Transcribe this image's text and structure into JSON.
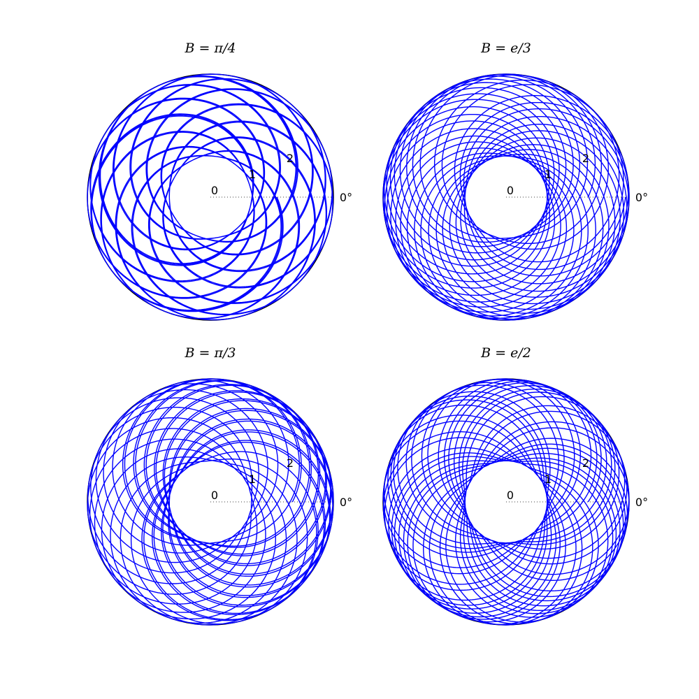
{
  "figure": {
    "background": "#ffffff"
  },
  "chart_data": [
    {
      "type": "line",
      "subtype": "polar",
      "title": "B = π/4",
      "B": 0.7853981634,
      "equation_hint": "r = 2 + sin(B * theta) with many windings (rose-like curve)",
      "r_range": [
        0,
        3.0
      ],
      "r_ticks": [
        "0",
        "1",
        "2"
      ],
      "angle_label": "0°",
      "line_color": "#0000ff",
      "r_min": 1.0,
      "r_max": 3.0,
      "theta_turns": 30
    },
    {
      "type": "line",
      "subtype": "polar",
      "title": "B = e/3",
      "B": 0.9060939428,
      "r_range": [
        0,
        3.0
      ],
      "r_ticks": [
        "0",
        "1",
        "2"
      ],
      "angle_label": "0°",
      "line_color": "#0000ff",
      "r_min": 1.0,
      "r_max": 3.0,
      "theta_turns": 30
    },
    {
      "type": "line",
      "subtype": "polar",
      "title": "B = π/3",
      "B": 1.0471975512,
      "r_range": [
        0,
        3.0
      ],
      "r_ticks": [
        "0",
        "1",
        "2"
      ],
      "angle_label": "0°",
      "line_color": "#0000ff",
      "r_min": 1.0,
      "r_max": 3.0,
      "theta_turns": 30
    },
    {
      "type": "line",
      "subtype": "polar",
      "title": "B = e/2",
      "B": 1.3591409142,
      "r_range": [
        0,
        3.0
      ],
      "r_ticks": [
        "0",
        "1",
        "2"
      ],
      "angle_label": "0°",
      "line_color": "#0000ff",
      "r_min": 1.0,
      "r_max": 3.0,
      "theta_turns": 30
    }
  ]
}
